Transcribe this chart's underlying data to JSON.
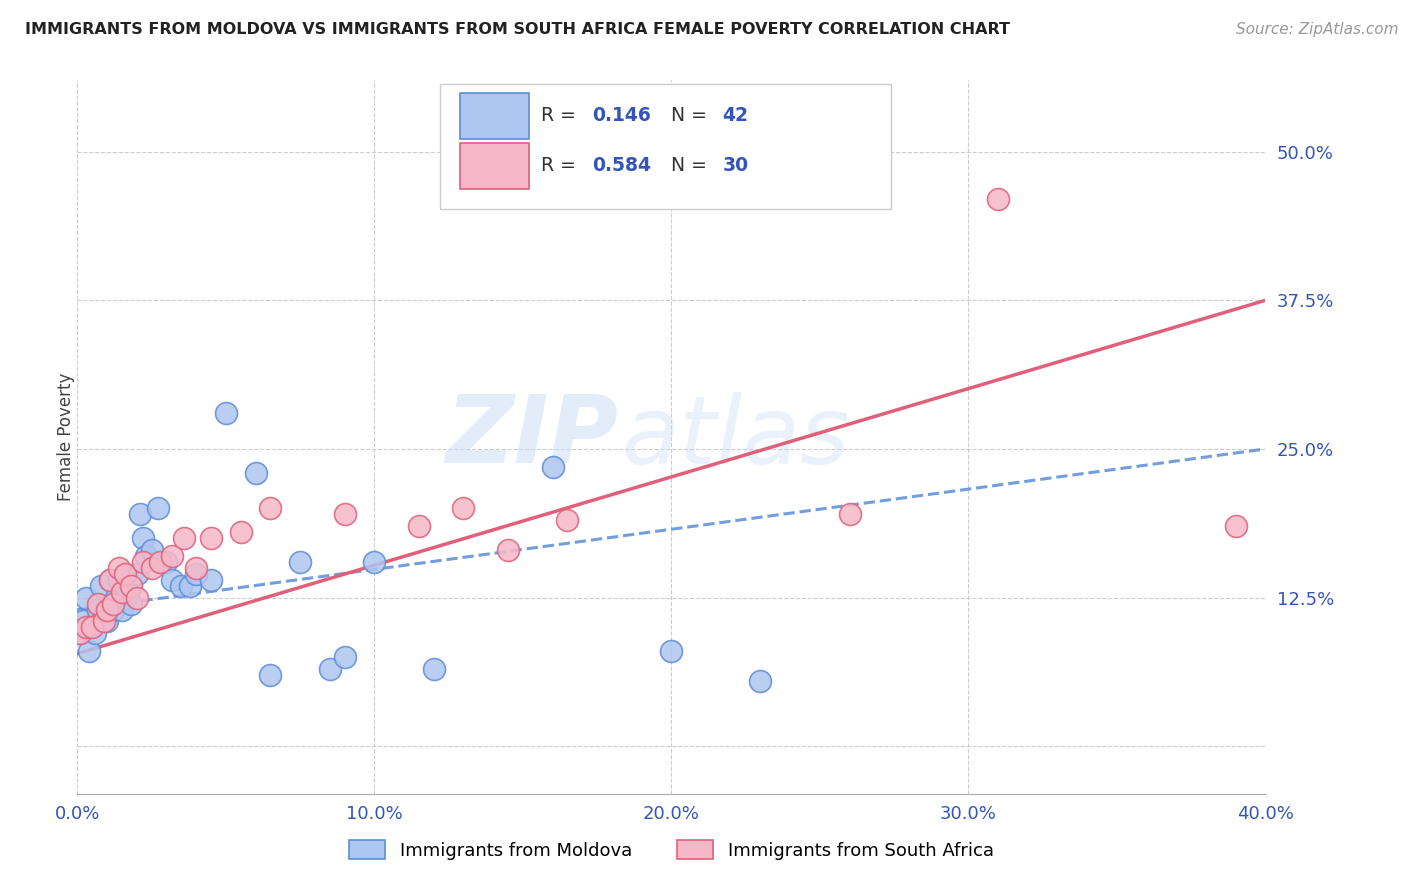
{
  "title": "IMMIGRANTS FROM MOLDOVA VS IMMIGRANTS FROM SOUTH AFRICA FEMALE POVERTY CORRELATION CHART",
  "source": "Source: ZipAtlas.com",
  "ylabel": "Female Poverty",
  "xlim": [
    0.0,
    0.4
  ],
  "ylim": [
    -0.04,
    0.56
  ],
  "yticks": [
    0.0,
    0.125,
    0.25,
    0.375,
    0.5
  ],
  "ytick_labels": [
    "",
    "12.5%",
    "25.0%",
    "37.5%",
    "50.0%"
  ],
  "xticks": [
    0.0,
    0.1,
    0.2,
    0.3,
    0.4
  ],
  "xtick_labels": [
    "0.0%",
    "10.0%",
    "20.0%",
    "30.0%",
    "40.0%"
  ],
  "moldova_color": "#aec6f0",
  "moldova_edge_color": "#5b8dd9",
  "south_africa_color": "#f5b8c8",
  "south_africa_edge_color": "#e0607a",
  "trend_moldova_color": "#5b8dd9",
  "trend_south_africa_color": "#e0607a",
  "legend_r_moldova": "0.146",
  "legend_n_moldova": "42",
  "legend_r_sa": "0.584",
  "legend_n_sa": "30",
  "axis_label_color": "#3355bb",
  "moldova_x": [
    0.001,
    0.002,
    0.003,
    0.004,
    0.005,
    0.006,
    0.007,
    0.008,
    0.009,
    0.01,
    0.01,
    0.011,
    0.012,
    0.013,
    0.014,
    0.015,
    0.016,
    0.017,
    0.018,
    0.02,
    0.021,
    0.022,
    0.023,
    0.025,
    0.027,
    0.03,
    0.032,
    0.035,
    0.038,
    0.04,
    0.045,
    0.05,
    0.06,
    0.065,
    0.075,
    0.085,
    0.09,
    0.1,
    0.12,
    0.16,
    0.2,
    0.23
  ],
  "moldova_y": [
    0.095,
    0.105,
    0.125,
    0.08,
    0.1,
    0.095,
    0.115,
    0.135,
    0.11,
    0.115,
    0.105,
    0.14,
    0.115,
    0.125,
    0.14,
    0.115,
    0.125,
    0.13,
    0.12,
    0.145,
    0.195,
    0.175,
    0.16,
    0.165,
    0.2,
    0.155,
    0.14,
    0.135,
    0.135,
    0.145,
    0.14,
    0.28,
    0.23,
    0.06,
    0.155,
    0.065,
    0.075,
    0.155,
    0.065,
    0.235,
    0.08,
    0.055
  ],
  "south_africa_x": [
    0.001,
    0.003,
    0.005,
    0.007,
    0.009,
    0.01,
    0.011,
    0.012,
    0.014,
    0.015,
    0.016,
    0.018,
    0.02,
    0.022,
    0.025,
    0.028,
    0.032,
    0.036,
    0.04,
    0.045,
    0.055,
    0.065,
    0.09,
    0.115,
    0.13,
    0.145,
    0.165,
    0.26,
    0.31,
    0.39
  ],
  "south_africa_y": [
    0.095,
    0.1,
    0.1,
    0.12,
    0.105,
    0.115,
    0.14,
    0.12,
    0.15,
    0.13,
    0.145,
    0.135,
    0.125,
    0.155,
    0.15,
    0.155,
    0.16,
    0.175,
    0.15,
    0.175,
    0.18,
    0.2,
    0.195,
    0.185,
    0.2,
    0.165,
    0.19,
    0.195,
    0.46,
    0.185
  ]
}
